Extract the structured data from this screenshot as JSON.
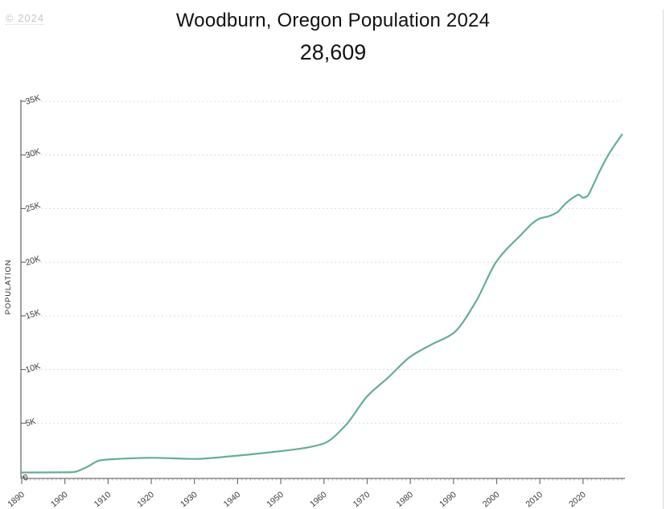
{
  "watermark": "© 2024",
  "header": {
    "title": "Woodburn, Oregon Population 2024",
    "value": "28,609"
  },
  "chart_data": {
    "type": "line",
    "title": "Woodburn, Oregon Population 2024",
    "current_value": 28609,
    "xlabel": "",
    "ylabel": "POPULATION",
    "x_tick_labels": [
      "1890",
      "1900",
      "1910",
      "1920",
      "1930",
      "1940",
      "1950",
      "1960",
      "1970",
      "1980",
      "1990",
      "2000",
      "2010",
      "2020"
    ],
    "y_tick_labels": [
      "0",
      "5K",
      "10K",
      "15K",
      "20K",
      "25K",
      "30K",
      "35K"
    ],
    "y_tick_values": [
      0,
      5000,
      10000,
      15000,
      20000,
      25000,
      30000,
      35000
    ],
    "xlim": [
      1890,
      2029
    ],
    "ylim": [
      0,
      35000
    ],
    "grid": "horizontal-dotted",
    "legend_position": "none",
    "line_color": "#63ae97",
    "series": [
      {
        "name": "Population",
        "points": [
          [
            1890,
            405
          ],
          [
            1900,
            420
          ],
          [
            1902,
            445
          ],
          [
            1905,
            900
          ],
          [
            1908,
            1520
          ],
          [
            1910,
            1616
          ],
          [
            1920,
            1777
          ],
          [
            1930,
            1675
          ],
          [
            1940,
            1982
          ],
          [
            1950,
            2395
          ],
          [
            1955,
            2650
          ],
          [
            1960,
            3120
          ],
          [
            1965,
            4800
          ],
          [
            1970,
            7495
          ],
          [
            1975,
            9300
          ],
          [
            1980,
            11196
          ],
          [
            1985,
            12350
          ],
          [
            1990,
            13404
          ],
          [
            1995,
            16200
          ],
          [
            2000,
            20100
          ],
          [
            2005,
            22300
          ],
          [
            2010,
            24080
          ],
          [
            2012,
            24280
          ],
          [
            2014,
            24650
          ],
          [
            2016,
            25500
          ],
          [
            2018,
            26100
          ],
          [
            2019,
            26300
          ],
          [
            2020,
            26013
          ],
          [
            2021,
            26155
          ],
          [
            2022,
            26900
          ],
          [
            2024,
            28609
          ],
          [
            2026,
            30100
          ],
          [
            2029,
            31900
          ]
        ]
      }
    ]
  },
  "colors": {
    "accent": "#63ae97",
    "axis": "#6e6e6e",
    "grid": "#dcdcdc",
    "tick_text": "#3c3c3c",
    "title_text": "#111111",
    "watermark": "#c6c6c6"
  }
}
